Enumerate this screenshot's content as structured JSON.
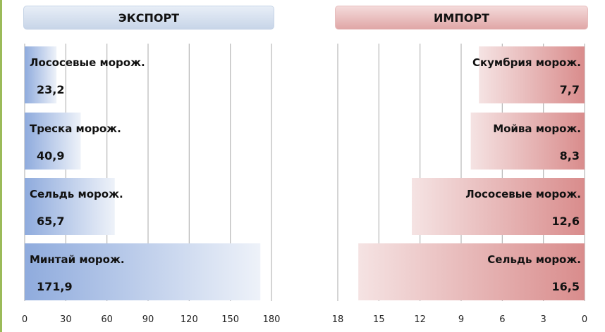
{
  "chart_data": [
    {
      "type": "bar",
      "title": "ЭКСПОРТ",
      "orientation": "horizontal",
      "direction": "left-to-right",
      "categories": [
        "Лососевые морож.",
        "Треска морож.",
        "Сельдь морож.",
        "Минтай морож."
      ],
      "values": [
        23.2,
        40.9,
        65.7,
        171.9
      ],
      "value_labels": [
        "23,2",
        "40,9",
        "65,7",
        "171,9"
      ],
      "xlim": [
        0,
        180
      ],
      "ticks": [
        0,
        30,
        60,
        90,
        120,
        150,
        180
      ],
      "tick_labels": [
        "0",
        "30",
        "60",
        "90",
        "120",
        "150",
        "180"
      ],
      "grid": true,
      "color": "#8ea9db"
    },
    {
      "type": "bar",
      "title": "ИМПОРТ",
      "orientation": "horizontal",
      "direction": "right-to-left",
      "categories": [
        "Скумбрия морож.",
        "Мойва морож.",
        "Лососевые морож.",
        "Сельдь морож."
      ],
      "values": [
        7.7,
        8.3,
        12.6,
        16.5
      ],
      "value_labels": [
        "7,7",
        "8,3",
        "12,6",
        "16,5"
      ],
      "xlim": [
        0,
        18
      ],
      "ticks": [
        18,
        15,
        12,
        9,
        6,
        3,
        0
      ],
      "tick_labels": [
        "18",
        "15",
        "12",
        "9",
        "6",
        "3",
        "0"
      ],
      "grid": true,
      "color": "#d98c8c"
    }
  ]
}
